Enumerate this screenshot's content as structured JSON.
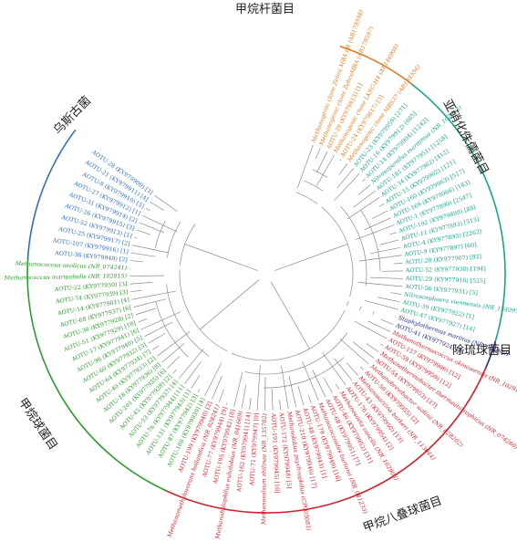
{
  "clade_labels": {
    "methanobacteria": "甲烷杆菌目",
    "thaumarchaeota": "亚硝化侏儒菌目",
    "thermococcales": "除琉球菌目",
    "methanosarcinales": "甲烷八叠球菌目",
    "methanococcales": "甲烷球菌目",
    "woesearchaeota": "乌斯古菌"
  },
  "colors": {
    "methanobacteria": "#e07b1f",
    "thaumarchaeota": "#1aa38a",
    "thermococcales": "#1b2a8a",
    "methanosarcinales": "#d21e2a",
    "methanococcales": "#2e9a2e",
    "woesearchaeota": "#2f6fb8",
    "branch": "#8a8a8a"
  },
  "leaves": [
    {
      "text": "Methanogenic clone Zebra MBA 6R (AB178598)",
      "group": "methanobacteria",
      "italic": true
    },
    {
      "text": "Methanogenic clone ZebraMBA (AB178597)",
      "group": "methanobacteria",
      "italic": true
    },
    {
      "text": "AOTU-29 (KY979813) [1]",
      "group": "methanobacteria",
      "italic": false
    },
    {
      "text": "Methanogenic clone LKSC-H4 (AF146908)",
      "group": "methanobacteria",
      "italic": true
    },
    {
      "text": "AOTU-24 (KY979817) [3]",
      "group": "methanobacteria",
      "italic": false
    },
    {
      "text": "Methanogenic clone MBS37 (AB184556)",
      "group": "methanobacteria",
      "italic": true
    },
    {
      "text": "AOTU-23 (KY979959) [271]",
      "group": "thaumarchaeota",
      "italic": false
    },
    {
      "text": "AOTU-16 (KY979912) [685]",
      "group": "thaumarchaeota",
      "italic": false
    },
    {
      "text": "AOTU-14 (KY979904) [1242]",
      "group": "thaumarchaeota",
      "italic": false
    },
    {
      "text": "Nitrosopumilus maritimus (NR_102913)",
      "group": "thaumarchaeota",
      "italic": true
    },
    {
      "text": "AOTU-181 (KY977951) [1258]",
      "group": "thaumarchaeota",
      "italic": false
    },
    {
      "text": "AOTU-34 (KY977962) [412]",
      "group": "thaumarchaeota",
      "italic": false
    },
    {
      "text": "AOTU-15 (KY979902) [121]",
      "group": "thaumarchaeota",
      "italic": false
    },
    {
      "text": "AOTU-160 (KY979963) [517]",
      "group": "thaumarchaeota",
      "italic": false
    },
    {
      "text": "AOTU-169 (KY979966) [183]",
      "group": "thaumarchaeota",
      "italic": false
    },
    {
      "text": "AOTU-1 (KY977890) [2547]",
      "group": "thaumarchaeota",
      "italic": false
    },
    {
      "text": "AOTU-192 (KY979899) [88]",
      "group": "thaumarchaeota",
      "italic": false
    },
    {
      "text": "AOTU-11 (KY977893) [513]",
      "group": "thaumarchaeota",
      "italic": false
    },
    {
      "text": "AOTU-4 (KY977893) [2262]",
      "group": "thaumarchaeota",
      "italic": false
    },
    {
      "text": "AOTU-9 (KY977897) [60]",
      "group": "thaumarchaeota",
      "italic": false
    },
    {
      "text": "AOTU-20 (KY977907) [93]",
      "group": "thaumarchaeota",
      "italic": false
    },
    {
      "text": "AOTU-52 (KY977930) [194]",
      "group": "thaumarchaeota",
      "italic": false
    },
    {
      "text": "AOTU-29 (KY977916) [525]",
      "group": "thaumarchaeota",
      "italic": false
    },
    {
      "text": "AOTU-56 (KY977931) [5]",
      "group": "thaumarchaeota",
      "italic": false
    },
    {
      "text": "Nitrososphaera viennensis (NR_134097)",
      "group": "thaumarchaeota",
      "italic": true
    },
    {
      "text": "AOTU-39 (KY977922) [1]",
      "group": "thaumarchaeota",
      "italic": false
    },
    {
      "text": "AOTU-47 (KY977927) [14]",
      "group": "thaumarchaeota",
      "italic": false
    },
    {
      "text": "Staphylothermus marinus (NR_044909)",
      "group": "thermococcales",
      "italic": true
    },
    {
      "text": "AOTU-41 (KY977924) [4]",
      "group": "thermococcales",
      "italic": false
    },
    {
      "text": "Methanothermococcus okinawensis (NR_102915)",
      "group": "methanosarcinales",
      "italic": true
    },
    {
      "text": "AOTU-157 (KY979906) [12]",
      "group": "methanosarcinales",
      "italic": false
    },
    {
      "text": "AOTU-59 (KY979959) [12]",
      "group": "methanosarcinales",
      "italic": false
    },
    {
      "text": "Methanothermobacter thermautotrophicus (NR_074260)",
      "group": "methanosarcinales",
      "italic": true
    },
    {
      "text": "AOTU-54 (KY979953) [27]",
      "group": "methanosarcinales",
      "italic": false
    },
    {
      "text": "Methanobrevibacter wolinii (NR_028202)",
      "group": "methanosarcinales",
      "italic": true
    },
    {
      "text": "AOTU-50 (KY979955) [2]",
      "group": "methanosarcinales",
      "italic": false
    },
    {
      "text": "Methanosarcina barkeri (NR_113044)",
      "group": "methanosarcinales",
      "italic": true
    },
    {
      "text": "AOTU-43 (KY979950) [13]",
      "group": "methanosarcinales",
      "italic": false
    },
    {
      "text": "AOTU-176 (KY979954) [2]",
      "group": "methanosarcinales",
      "italic": false
    },
    {
      "text": "Methanosaeta concilii (NR_102903)",
      "group": "methanosarcinales",
      "italic": true
    },
    {
      "text": "AOTU-46 (KY979952) [31]",
      "group": "methanosarcinales",
      "italic": false
    },
    {
      "text": "AOTU-68 (KY979951) [7]",
      "group": "methanosarcinales",
      "italic": false
    },
    {
      "text": "Methanococcoides burtonii (NR_041233)",
      "group": "methanosarcinales",
      "italic": true
    },
    {
      "text": "AOTU-179 (KY979949) [16]",
      "group": "methanosarcinales",
      "italic": false
    },
    {
      "text": "AOTU-48 (KY979943) [1]",
      "group": "methanosarcinales",
      "italic": false
    },
    {
      "text": "AOTU-210 (KY979946) [17]",
      "group": "methanosarcinales",
      "italic": false
    },
    {
      "text": "Methanolobus psychrophilus (CP003083)",
      "group": "methanosarcinales",
      "italic": true
    },
    {
      "text": "AOTU-172 (KY979948) [5]",
      "group": "methanosarcinales",
      "italic": false
    },
    {
      "text": "AOTU-191 (KY979945) [10]",
      "group": "methanosarcinales",
      "italic": false
    },
    {
      "text": "Methanosalsum zhilinae (NR_135782)",
      "group": "methanosarcinales",
      "italic": true
    },
    {
      "text": "AOTU-71 (KY979947) [9]",
      "group": "methanosarcinales",
      "italic": false
    },
    {
      "text": "AOTU-162 (KY979941) [14]",
      "group": "methanosarcinales",
      "italic": false
    },
    {
      "text": "Methanohalophilus euhalobius (NR_041669)",
      "group": "methanosarcinales",
      "italic": true
    },
    {
      "text": "AOTU-195 (KY979942) [8]",
      "group": "methanosarcinales",
      "italic": false
    },
    {
      "text": "AOTU-77 (KY979944) [9]",
      "group": "methanosarcinales",
      "italic": false
    },
    {
      "text": "Methanomethylovorans hollandica (NR_028241)",
      "group": "methanosarcinales",
      "italic": true
    },
    {
      "text": "AOTU-199 (KY979940) [2]",
      "group": "methanosarcinales",
      "italic": false
    },
    {
      "text": "AOTU-186 (KY979939) [4]",
      "group": "methanococcales",
      "italic": false
    },
    {
      "text": "AOTU-87 (KY977942) [3]",
      "group": "methanococcales",
      "italic": false
    },
    {
      "text": "AOTU-131 (KY977943) [1]",
      "group": "methanococcales",
      "italic": false
    },
    {
      "text": "AOTU-76 (KY977944) [11]",
      "group": "methanococcales",
      "italic": false
    },
    {
      "text": "AOTU-53 (KY977937) [4]",
      "group": "methanococcales",
      "italic": false
    },
    {
      "text": "AOTU-45 (KY977938) [2]",
      "group": "methanococcales",
      "italic": false
    },
    {
      "text": "AOTU-201 (KY977935) [6]",
      "group": "methanococcales",
      "italic": false
    },
    {
      "text": "AOTU-18 (KY977936) [8]",
      "group": "methanococcales",
      "italic": false
    },
    {
      "text": "AOTU-40 (KY977933) [2]",
      "group": "methanococcales",
      "italic": false
    },
    {
      "text": "AOTU-64 (KY977934) [7]",
      "group": "methanococcales",
      "italic": false
    },
    {
      "text": "AOTU-60 (KY977932) [3]",
      "group": "methanococcales",
      "italic": false
    },
    {
      "text": "AOTU-96 (KY977940) [5]",
      "group": "methanococcales",
      "italic": false
    },
    {
      "text": "AOTU-17 (KY977941) [6]",
      "group": "methanococcales",
      "italic": false
    },
    {
      "text": "AOTU-51 (KY977929) [18]",
      "group": "methanococcales",
      "italic": false
    },
    {
      "text": "AOTU-30 (KY977928) [2]",
      "group": "methanococcales",
      "italic": false
    },
    {
      "text": "AOTU-68 (KY977937) [6]",
      "group": "methanococcales",
      "italic": false
    },
    {
      "text": "AOTU-14 (KY977901) [4]",
      "group": "methanococcales",
      "italic": false
    },
    {
      "text": "AOTU-74 (KY977939) [3]",
      "group": "methanococcales",
      "italic": false
    },
    {
      "text": "AOTU-22 (KY977930) [3]",
      "group": "methanococcales",
      "italic": false
    },
    {
      "text": "Methanococcus maripaludis (NR_102815)",
      "group": "methanococcales",
      "italic": true
    },
    {
      "text": "Methanococcus aeolicus (NR_074241)",
      "group": "methanococcales",
      "italic": true
    },
    {
      "text": "AOTU-36 (KY979948) [2]",
      "group": "woesearchaeota",
      "italic": false
    },
    {
      "text": "AOTU-107 (KY979916) [1]",
      "group": "woesearchaeota",
      "italic": false
    },
    {
      "text": "AOTU-25 (KY979917) [2]",
      "group": "woesearchaeota",
      "italic": false
    },
    {
      "text": "AOTU-52 (KY979913) [1]",
      "group": "woesearchaeota",
      "italic": false
    },
    {
      "text": "AOTU-26 (KY979915) [3]",
      "group": "woesearchaeota",
      "italic": false
    },
    {
      "text": "AOTU-31 (KY979914) [2]",
      "group": "woesearchaeota",
      "italic": false
    },
    {
      "text": "AOTU-27 (KY979912) [1]",
      "group": "woesearchaeota",
      "italic": false
    },
    {
      "text": "AOTU-8 (KY979910) [5]",
      "group": "woesearchaeota",
      "italic": false
    },
    {
      "text": "AOTU-21 (KY979911) [4]",
      "group": "woesearchaeota",
      "italic": false
    },
    {
      "text": "AOTU-28 (KY979909) [3]",
      "group": "woesearchaeota",
      "italic": false
    }
  ]
}
